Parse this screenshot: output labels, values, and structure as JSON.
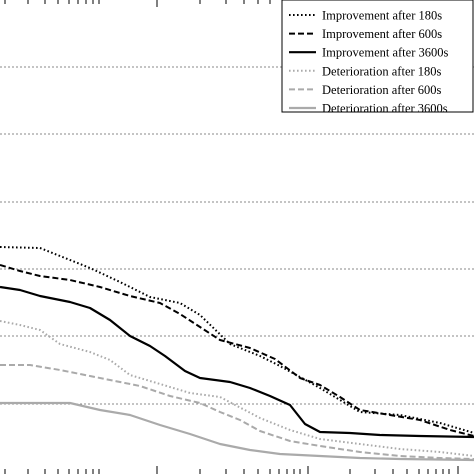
{
  "chart_data": {
    "type": "line",
    "title": "",
    "xlabel": "",
    "ylabel": "",
    "x_scale": "log",
    "grid": "horizontal-dashed",
    "legend_position": "top-right",
    "series": [
      {
        "name": "Improvement after 180s",
        "color": "#000000",
        "style": "dotted",
        "points": [
          [
            0,
            247
          ],
          [
            40,
            248
          ],
          [
            60,
            256
          ],
          [
            90,
            268
          ],
          [
            120,
            282
          ],
          [
            150,
            297
          ],
          [
            180,
            303
          ],
          [
            200,
            315
          ],
          [
            230,
            344
          ],
          [
            260,
            356
          ],
          [
            280,
            366
          ],
          [
            300,
            377
          ],
          [
            320,
            388
          ],
          [
            340,
            400
          ],
          [
            360,
            412
          ],
          [
            400,
            415
          ],
          [
            440,
            423
          ],
          [
            474,
            433
          ]
        ]
      },
      {
        "name": "Improvement after 600s",
        "color": "#000000",
        "style": "dashed",
        "points": [
          [
            0,
            265
          ],
          [
            20,
            271
          ],
          [
            40,
            276
          ],
          [
            70,
            280
          ],
          [
            100,
            287
          ],
          [
            130,
            296
          ],
          [
            160,
            303
          ],
          [
            180,
            314
          ],
          [
            200,
            327
          ],
          [
            220,
            340
          ],
          [
            250,
            348
          ],
          [
            275,
            359
          ],
          [
            300,
            378
          ],
          [
            320,
            385
          ],
          [
            340,
            397
          ],
          [
            360,
            410
          ],
          [
            390,
            415
          ],
          [
            420,
            420
          ],
          [
            450,
            430
          ],
          [
            474,
            436
          ]
        ]
      },
      {
        "name": "Improvement after 3600s",
        "color": "#000000",
        "style": "solid",
        "points": [
          [
            0,
            287
          ],
          [
            20,
            290
          ],
          [
            40,
            296
          ],
          [
            70,
            302
          ],
          [
            90,
            308
          ],
          [
            110,
            320
          ],
          [
            130,
            336
          ],
          [
            150,
            346
          ],
          [
            165,
            356
          ],
          [
            185,
            371
          ],
          [
            200,
            378
          ],
          [
            230,
            382
          ],
          [
            250,
            388
          ],
          [
            270,
            396
          ],
          [
            290,
            405
          ],
          [
            305,
            424
          ],
          [
            320,
            432
          ],
          [
            350,
            433
          ],
          [
            380,
            435
          ],
          [
            420,
            436
          ],
          [
            474,
            437
          ]
        ]
      },
      {
        "name": "Deterioration after 180s",
        "color": "#aaaaaa",
        "style": "dotted",
        "points": [
          [
            0,
            321
          ],
          [
            20,
            325
          ],
          [
            40,
            330
          ],
          [
            60,
            344
          ],
          [
            90,
            352
          ],
          [
            110,
            360
          ],
          [
            130,
            375
          ],
          [
            160,
            384
          ],
          [
            190,
            393
          ],
          [
            220,
            397
          ],
          [
            260,
            418
          ],
          [
            290,
            430
          ],
          [
            320,
            439
          ],
          [
            360,
            444
          ],
          [
            400,
            449
          ],
          [
            440,
            452
          ],
          [
            474,
            456
          ]
        ]
      },
      {
        "name": "Deterioration after 600s",
        "color": "#aaaaaa",
        "style": "dashed",
        "points": [
          [
            0,
            365
          ],
          [
            30,
            365
          ],
          [
            60,
            370
          ],
          [
            90,
            376
          ],
          [
            110,
            380
          ],
          [
            140,
            386
          ],
          [
            170,
            396
          ],
          [
            200,
            403
          ],
          [
            220,
            412
          ],
          [
            240,
            420
          ],
          [
            260,
            431
          ],
          [
            290,
            441
          ],
          [
            320,
            446
          ],
          [
            360,
            452
          ],
          [
            400,
            456
          ],
          [
            440,
            458
          ],
          [
            474,
            459
          ]
        ]
      },
      {
        "name": "Deterioration after 3600s",
        "color": "#aaaaaa",
        "style": "solid",
        "points": [
          [
            0,
            403
          ],
          [
            70,
            403
          ],
          [
            100,
            410
          ],
          [
            130,
            415
          ],
          [
            160,
            425
          ],
          [
            190,
            434
          ],
          [
            220,
            444
          ],
          [
            250,
            450
          ],
          [
            280,
            454
          ],
          [
            320,
            456
          ],
          [
            360,
            458
          ],
          [
            400,
            459
          ],
          [
            474,
            460
          ]
        ]
      }
    ]
  }
}
